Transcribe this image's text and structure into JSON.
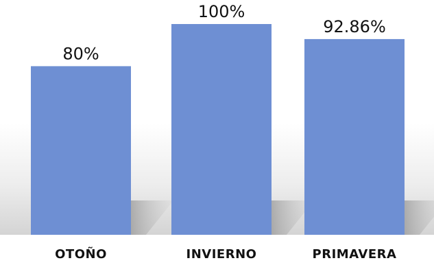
{
  "chart_data": {
    "type": "bar",
    "categories": [
      "OTOÑO",
      "INVIERNO",
      "PRIMAVERA"
    ],
    "values": [
      80,
      100,
      92.86
    ],
    "value_labels": [
      "80%",
      "100%",
      "92.86%"
    ],
    "title": "",
    "xlabel": "",
    "ylabel": "",
    "ylim": [
      0,
      100
    ],
    "grid": false,
    "legend": "none",
    "bar_color": "#6e8fd3",
    "background_color": "#ffffff"
  }
}
